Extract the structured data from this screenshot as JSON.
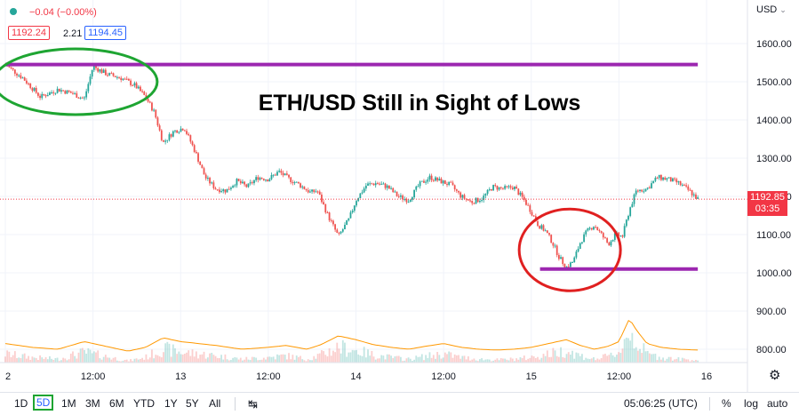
{
  "header": {
    "change_text": "−0.04 (−0.00%)",
    "bid": "1192.24",
    "spread": "2.21",
    "ask": "1194.45",
    "currency": "USD",
    "status_color": "#26a69a"
  },
  "chart_data": {
    "type": "candlestick",
    "title": "ETH/USD Still in Sight of Lows",
    "y_axis": {
      "ylim": [
        760,
        1700
      ],
      "ticks": [
        "1600.00",
        "1500.00",
        "1400.00",
        "1300.00",
        "1200.00",
        "1100.00",
        "1000.00",
        "900.00",
        "800.00"
      ],
      "tick_values": [
        1600,
        1500,
        1400,
        1300,
        1200,
        1100,
        1000,
        900,
        800
      ]
    },
    "x_axis": {
      "ticks": [
        "2",
        "12:00",
        "13",
        "12:00",
        "14",
        "12:00",
        "15",
        "12:00",
        "16"
      ],
      "tick_positions": [
        0,
        0.5,
        1,
        1.5,
        2,
        2.5,
        3,
        3.5,
        4
      ]
    },
    "price_anchors": [
      [
        0.0,
        1545
      ],
      [
        0.1,
        1510
      ],
      [
        0.2,
        1460
      ],
      [
        0.3,
        1480
      ],
      [
        0.38,
        1470
      ],
      [
        0.45,
        1455
      ],
      [
        0.5,
        1540
      ],
      [
        0.58,
        1520
      ],
      [
        0.66,
        1510
      ],
      [
        0.74,
        1490
      ],
      [
        0.8,
        1460
      ],
      [
        0.85,
        1420
      ],
      [
        0.9,
        1340
      ],
      [
        0.96,
        1370
      ],
      [
        1.02,
        1380
      ],
      [
        1.08,
        1320
      ],
      [
        1.14,
        1250
      ],
      [
        1.2,
        1220
      ],
      [
        1.26,
        1215
      ],
      [
        1.32,
        1240
      ],
      [
        1.38,
        1225
      ],
      [
        1.44,
        1250
      ],
      [
        1.5,
        1245
      ],
      [
        1.56,
        1265
      ],
      [
        1.62,
        1245
      ],
      [
        1.68,
        1230
      ],
      [
        1.74,
        1210
      ],
      [
        1.78,
        1215
      ],
      [
        1.84,
        1150
      ],
      [
        1.9,
        1095
      ],
      [
        1.96,
        1140
      ],
      [
        2.0,
        1190
      ],
      [
        2.06,
        1230
      ],
      [
        2.12,
        1235
      ],
      [
        2.18,
        1225
      ],
      [
        2.24,
        1200
      ],
      [
        2.3,
        1190
      ],
      [
        2.36,
        1230
      ],
      [
        2.42,
        1250
      ],
      [
        2.48,
        1240
      ],
      [
        2.54,
        1230
      ],
      [
        2.6,
        1200
      ],
      [
        2.66,
        1185
      ],
      [
        2.72,
        1195
      ],
      [
        2.78,
        1225
      ],
      [
        2.84,
        1220
      ],
      [
        2.9,
        1225
      ],
      [
        2.96,
        1190
      ],
      [
        3.0,
        1160
      ],
      [
        3.04,
        1125
      ],
      [
        3.08,
        1110
      ],
      [
        3.12,
        1080
      ],
      [
        3.16,
        1040
      ],
      [
        3.2,
        1015
      ],
      [
        3.24,
        1030
      ],
      [
        3.28,
        1080
      ],
      [
        3.32,
        1110
      ],
      [
        3.36,
        1125
      ],
      [
        3.4,
        1100
      ],
      [
        3.44,
        1075
      ],
      [
        3.48,
        1100
      ],
      [
        3.52,
        1095
      ],
      [
        3.56,
        1165
      ],
      [
        3.6,
        1215
      ],
      [
        3.66,
        1220
      ],
      [
        3.72,
        1250
      ],
      [
        3.78,
        1245
      ],
      [
        3.84,
        1235
      ],
      [
        3.9,
        1215
      ],
      [
        3.95,
        1193
      ]
    ],
    "volume_anchors": [
      [
        0.0,
        815
      ],
      [
        0.15,
        805
      ],
      [
        0.3,
        800
      ],
      [
        0.45,
        820
      ],
      [
        0.55,
        810
      ],
      [
        0.7,
        795
      ],
      [
        0.8,
        805
      ],
      [
        0.9,
        830
      ],
      [
        1.0,
        820
      ],
      [
        1.1,
        815
      ],
      [
        1.2,
        810
      ],
      [
        1.35,
        800
      ],
      [
        1.5,
        805
      ],
      [
        1.6,
        810
      ],
      [
        1.72,
        800
      ],
      [
        1.8,
        812
      ],
      [
        1.9,
        835
      ],
      [
        2.0,
        825
      ],
      [
        2.1,
        812
      ],
      [
        2.2,
        805
      ],
      [
        2.3,
        800
      ],
      [
        2.4,
        808
      ],
      [
        2.5,
        815
      ],
      [
        2.6,
        805
      ],
      [
        2.7,
        800
      ],
      [
        2.8,
        798
      ],
      [
        2.9,
        800
      ],
      [
        3.0,
        805
      ],
      [
        3.1,
        815
      ],
      [
        3.2,
        825
      ],
      [
        3.28,
        810
      ],
      [
        3.36,
        800
      ],
      [
        3.44,
        808
      ],
      [
        3.5,
        820
      ],
      [
        3.56,
        880
      ],
      [
        3.6,
        850
      ],
      [
        3.66,
        815
      ],
      [
        3.74,
        805
      ],
      [
        3.84,
        800
      ],
      [
        3.95,
        798
      ]
    ],
    "last_price": "1192.85",
    "countdown": "03:35",
    "up_color": "#26a69a",
    "down_color": "#ef5350",
    "annotations": {
      "resistance_line": {
        "value": 1545,
        "x_start": 0,
        "x_end": 3.95,
        "color": "#9c27b0"
      },
      "support_line": {
        "value": 1010,
        "x_start": 3.05,
        "x_end": 3.95,
        "color": "#9c27b0"
      },
      "green_ellipse": {
        "center": [
          0.4,
          1500
        ],
        "color": "#1ea532"
      },
      "red_ellipse": {
        "center": [
          3.22,
          1060
        ],
        "color": "#e02020"
      }
    }
  },
  "toolbar": {
    "ranges": [
      "1D",
      "5D",
      "1M",
      "3M",
      "6M",
      "YTD",
      "1Y",
      "5Y",
      "All"
    ],
    "selected_range": "5D",
    "time": "05:06:25 (UTC)",
    "percent": "%",
    "log": "log",
    "auto": "auto",
    "compare_icon": "compare-icon",
    "settings_icon": "gear-icon"
  }
}
